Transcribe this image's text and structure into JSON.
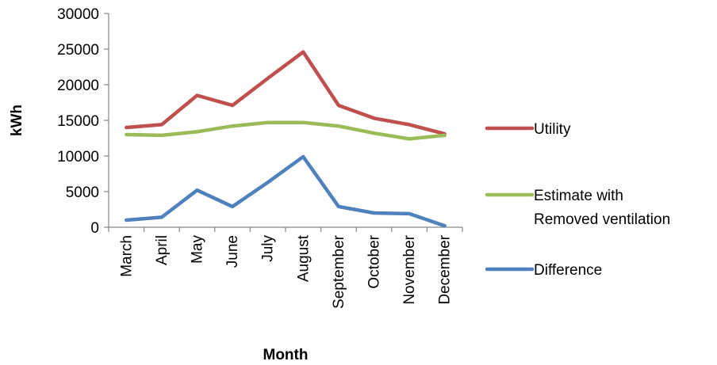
{
  "chart_data": {
    "type": "line",
    "title": "",
    "xlabel": "Month",
    "ylabel": "kWh",
    "ylim": [
      0,
      30000
    ],
    "yticks": [
      0,
      5000,
      10000,
      15000,
      20000,
      25000,
      30000
    ],
    "grid": false,
    "legend_position": "right",
    "categories": [
      "March",
      "April",
      "May",
      "June",
      "July",
      "August",
      "September",
      "October",
      "November",
      "December"
    ],
    "series": [
      {
        "name": "Utility",
        "color": "#c0504d",
        "values": [
          14000,
          14400,
          18500,
          17100,
          20900,
          24600,
          17100,
          15300,
          14400,
          13100
        ]
      },
      {
        "name": "Estimate with Removed ventilation",
        "legend_lines": [
          "Estimate with",
          "Removed ventilation"
        ],
        "color": "#9bbb59",
        "values": [
          13000,
          12900,
          13400,
          14200,
          14700,
          14700,
          14200,
          13200,
          12400,
          12900
        ]
      },
      {
        "name": "Difference",
        "color": "#4f81bd",
        "values": [
          1000,
          1400,
          5200,
          2900,
          6300,
          9900,
          2900,
          2000,
          1900,
          200
        ]
      }
    ]
  }
}
